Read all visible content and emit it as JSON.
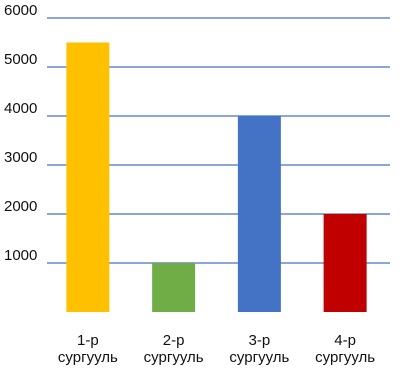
{
  "chart_data": {
    "type": "bar",
    "categories": [
      [
        "1-р",
        "сургууль"
      ],
      [
        "2-р",
        "сургууль"
      ],
      [
        "3-р",
        "сургууль"
      ],
      [
        "4-р",
        "сургууль"
      ]
    ],
    "values": [
      5500,
      1000,
      4000,
      2000
    ],
    "colors": [
      "#FFC000",
      "#70AD47",
      "#4472C4",
      "#C00000"
    ],
    "ylim": [
      0,
      6000
    ],
    "yticks": [
      1000,
      2000,
      3000,
      4000,
      5000,
      6000
    ],
    "grid": true,
    "grid_color": "#4472C4",
    "title": "",
    "xlabel": "",
    "ylabel": ""
  }
}
